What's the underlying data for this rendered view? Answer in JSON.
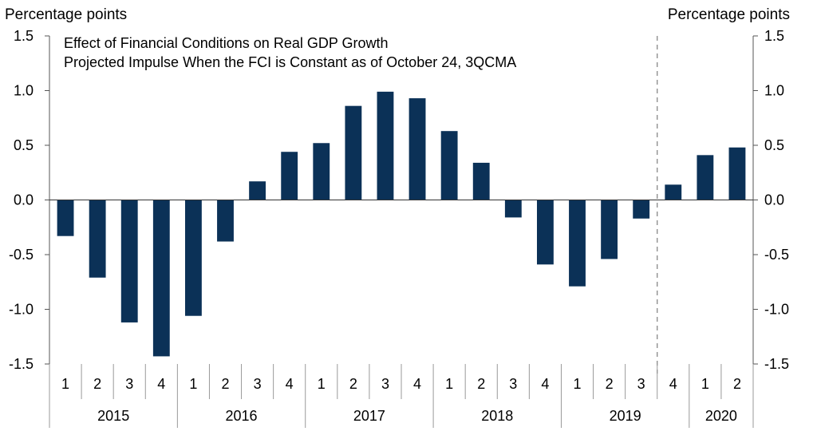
{
  "chart_data": {
    "type": "bar",
    "title": "Effect of Financial Conditions on Real GDP Growth",
    "subtitle": "Projected Impulse When the FCI is Constant as of October 24, 3QCMA",
    "ylabel_left": "Percentage points",
    "ylabel_right": "Percentage points",
    "ylim": [
      -1.5,
      1.5
    ],
    "yticks": [
      "1.5",
      "1.0",
      "0.5",
      "0.0",
      "-0.5",
      "-1.0",
      "-1.5"
    ],
    "ytick_values": [
      1.5,
      1.0,
      0.5,
      0.0,
      -0.5,
      -1.0,
      -1.5
    ],
    "bar_color": "#0b3157",
    "categories": [
      "1",
      "2",
      "3",
      "4",
      "1",
      "2",
      "3",
      "4",
      "1",
      "2",
      "3",
      "4",
      "1",
      "2",
      "3",
      "4",
      "1",
      "2",
      "3",
      "4",
      "1",
      "2"
    ],
    "years": [
      {
        "label": "2015",
        "count": 4
      },
      {
        "label": "2016",
        "count": 4
      },
      {
        "label": "2017",
        "count": 4
      },
      {
        "label": "2018",
        "count": 4
      },
      {
        "label": "2019",
        "count": 4
      },
      {
        "label": "2020",
        "count": 2
      }
    ],
    "values": [
      -0.33,
      -0.71,
      -1.12,
      -1.43,
      -1.06,
      -0.38,
      0.17,
      0.44,
      0.52,
      0.86,
      0.99,
      0.93,
      0.63,
      0.34,
      -0.16,
      -0.59,
      -0.79,
      -0.54,
      -0.17,
      0.14,
      0.41,
      0.48
    ],
    "projection_starts_after_index": 18
  }
}
